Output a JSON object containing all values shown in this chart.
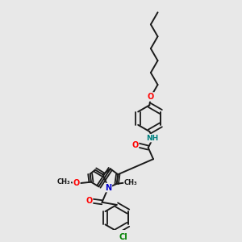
{
  "background_color": "#e8e8e8",
  "bond_color": "#1a1a1a",
  "atom_colors": {
    "O": "#ff0000",
    "N": "#0000cc",
    "NH": "#008080",
    "Cl": "#008000",
    "C": "#1a1a1a"
  }
}
